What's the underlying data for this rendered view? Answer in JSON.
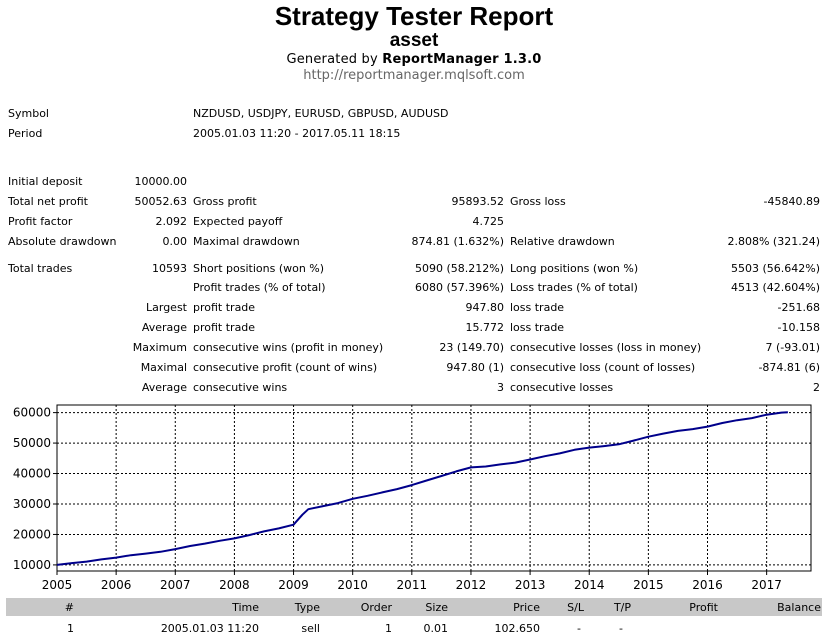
{
  "header": {
    "title": "Strategy Tester Report",
    "subtitle": "asset",
    "generated_prefix": "Generated by ",
    "generator": "ReportManager 1.3.0",
    "url": "http://reportmanager.mqlsoft.com"
  },
  "info": {
    "symbol_label": "Symbol",
    "symbol_value": "NZDUSD, USDJPY, EURUSD, GBPUSD, AUDUSD",
    "period_label": "Period",
    "period_value": "2005.01.03 11:20 - 2017.05.11 18:15"
  },
  "stats": {
    "initial_deposit_label": "Initial deposit",
    "initial_deposit": "10000.00",
    "total_net_profit_label": "Total net profit",
    "total_net_profit": "50052.63",
    "gross_profit_label": "Gross profit",
    "gross_profit": "95893.52",
    "gross_loss_label": "Gross loss",
    "gross_loss": "-45840.89",
    "profit_factor_label": "Profit factor",
    "profit_factor": "2.092",
    "expected_payoff_label": "Expected payoff",
    "expected_payoff": "4.725",
    "absolute_drawdown_label": "Absolute drawdown",
    "absolute_drawdown": "0.00",
    "maximal_drawdown_label": "Maximal drawdown",
    "maximal_drawdown": "874.81 (1.632%)",
    "relative_drawdown_label": "Relative drawdown",
    "relative_drawdown": "2.808% (321.24)",
    "total_trades_label": "Total trades",
    "total_trades": "10593",
    "short_positions_label": "Short positions (won %)",
    "short_positions": "5090 (58.212%)",
    "long_positions_label": "Long positions (won %)",
    "long_positions": "5503 (56.642%)",
    "profit_trades_label": "Profit trades (% of total)",
    "profit_trades": "6080 (57.396%)",
    "loss_trades_label": "Loss trades (% of total)",
    "loss_trades": "4513 (42.604%)",
    "largest_label": "Largest",
    "largest_profit_label": "profit trade",
    "largest_profit": "947.80",
    "largest_loss_label": "loss trade",
    "largest_loss": "-251.68",
    "average_label": "Average",
    "average_profit_label": "profit trade",
    "average_profit": "15.772",
    "average_loss_label": "loss trade",
    "average_loss": "-10.158",
    "maximum_label": "Maximum",
    "max_cons_wins_label": "consecutive wins (profit in money)",
    "max_cons_wins": "23 (149.70)",
    "max_cons_losses_label": "consecutive losses (loss in money)",
    "max_cons_losses": "7 (-93.01)",
    "maximal_label": "Maximal",
    "maximal_cons_profit_label": "consecutive profit (count of wins)",
    "maximal_cons_profit": "947.80 (1)",
    "maximal_cons_loss_label": "consecutive loss (count of losses)",
    "maximal_cons_loss": "-874.81 (6)",
    "average2_label": "Average",
    "avg_cons_wins_label": "consecutive wins",
    "avg_cons_wins": "3",
    "avg_cons_losses_label": "consecutive losses",
    "avg_cons_losses": "2"
  },
  "chart_data": {
    "type": "line",
    "title": "",
    "xlabel": "",
    "ylabel": "",
    "x_ticks": [
      "2005",
      "2006",
      "2007",
      "2008",
      "2009",
      "2010",
      "2011",
      "2012",
      "2013",
      "2014",
      "2015",
      "2016",
      "2017"
    ],
    "y_ticks": [
      10000,
      20000,
      30000,
      40000,
      50000,
      60000
    ],
    "xlim": [
      2005.0,
      2017.75
    ],
    "ylim": [
      8000,
      62500
    ],
    "grid": true,
    "line_color": "#00008b",
    "series": [
      {
        "x": [
          2005.0,
          2005.25,
          2005.5,
          2005.75,
          2006.0,
          2006.25,
          2006.5,
          2006.75,
          2007.0,
          2007.25,
          2007.5,
          2007.75,
          2008.0,
          2008.25,
          2008.5,
          2008.75,
          2009.0,
          2009.15,
          2009.25,
          2009.5,
          2009.75,
          2010.0,
          2010.25,
          2010.5,
          2010.75,
          2011.0,
          2011.25,
          2011.5,
          2011.75,
          2012.0,
          2012.25,
          2012.5,
          2012.75,
          2013.0,
          2013.25,
          2013.5,
          2013.75,
          2014.0,
          2014.25,
          2014.5,
          2014.75,
          2015.0,
          2015.25,
          2015.5,
          2015.75,
          2016.0,
          2016.25,
          2016.5,
          2016.75,
          2017.0,
          2017.25,
          2017.36
        ],
        "y": [
          10000,
          10600,
          11100,
          11800,
          12400,
          13200,
          13700,
          14300,
          15200,
          16200,
          17000,
          17900,
          18700,
          19800,
          21000,
          22000,
          23200,
          26500,
          28300,
          29300,
          30300,
          31700,
          32700,
          33800,
          34900,
          36200,
          37700,
          39200,
          40700,
          42000,
          42300,
          43000,
          43600,
          44600,
          45700,
          46600,
          47800,
          48500,
          49000,
          49600,
          50800,
          52100,
          53100,
          54000,
          54600,
          55400,
          56600,
          57500,
          58200,
          59300,
          60000,
          60100
        ]
      }
    ]
  },
  "trades": {
    "columns": [
      "#",
      "Time",
      "Type",
      "Order",
      "Size",
      "Price",
      "S/L",
      "T/P",
      "Profit",
      "Balance"
    ],
    "rows": [
      [
        "1",
        "2005.01.03 11:20",
        "sell",
        "1",
        "0.01",
        "102.650",
        "-",
        "-",
        "",
        ""
      ]
    ]
  }
}
